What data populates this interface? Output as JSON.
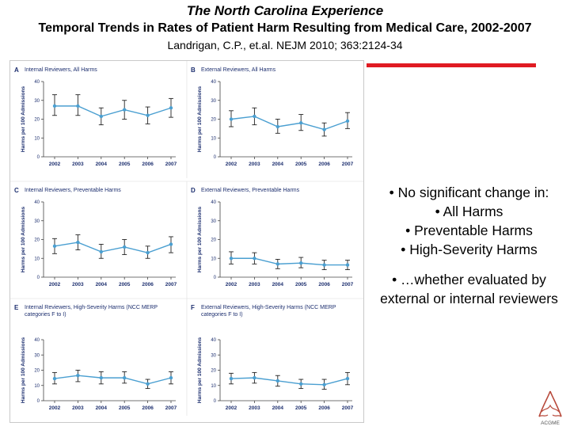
{
  "header": {
    "title_line1": "The North Carolina Experience",
    "title_line2": "Temporal Trends in Rates of Patient Harm Resulting from Medical Care, 2002-2007",
    "citation": "Landrigan, C.P., et.al. NEJM 2010; 363:2124-34"
  },
  "accent_color": "#e01b22",
  "series_color": "#4a9fd1",
  "bullets": {
    "first": "• No significant change in:",
    "subitems": [
      "• All Harms",
      "• Preventable Harms",
      "• High-Severity Harms"
    ],
    "second": "• …whether evaluated by external or internal reviewers"
  },
  "logo": {
    "icon": "acgme-logo-icon",
    "text": "ACGME"
  },
  "chart_data": [
    {
      "panel": "A",
      "title": "Internal Reviewers, All Harms",
      "type": "line",
      "ylabel": "Harms per 100 Admissions",
      "ylim": [
        0,
        40
      ],
      "yticks": [
        0,
        10,
        20,
        30,
        40
      ],
      "x": [
        "2002",
        "2003",
        "2004",
        "2005",
        "2006",
        "2007"
      ],
      "values": [
        27,
        27,
        21.5,
        25,
        22,
        26
      ],
      "ci_low": [
        22,
        22,
        17,
        20,
        17.5,
        21
      ],
      "ci_high": [
        33,
        33,
        26,
        30,
        26.5,
        31
      ]
    },
    {
      "panel": "B",
      "title": "External Reviewers, All Harms",
      "type": "line",
      "ylabel": "Harms per 100 Admissions",
      "ylim": [
        0,
        40
      ],
      "yticks": [
        0,
        10,
        20,
        30,
        40
      ],
      "x": [
        "2002",
        "2003",
        "2004",
        "2005",
        "2006",
        "2007"
      ],
      "values": [
        20,
        21.5,
        16,
        18,
        14.5,
        19
      ],
      "ci_low": [
        16,
        17,
        12.5,
        14,
        11,
        15
      ],
      "ci_high": [
        24.5,
        26,
        20,
        22.5,
        18,
        23.5
      ]
    },
    {
      "panel": "C",
      "title": "Internal Reviewers, Preventable Harms",
      "type": "line",
      "ylabel": "Harms per 100 Admissions",
      "ylim": [
        0,
        40
      ],
      "yticks": [
        0,
        10,
        20,
        30,
        40
      ],
      "x": [
        "2002",
        "2003",
        "2004",
        "2005",
        "2006",
        "2007"
      ],
      "values": [
        16.5,
        18.5,
        13.5,
        16,
        13,
        17.5
      ],
      "ci_low": [
        12.5,
        14.5,
        10,
        12,
        10,
        13
      ],
      "ci_high": [
        20.5,
        22.5,
        17.5,
        20,
        16.5,
        21.5
      ]
    },
    {
      "panel": "D",
      "title": "External Reviewers, Preventable Harms",
      "type": "line",
      "ylabel": "Harms per 100 Admissions",
      "ylim": [
        0,
        40
      ],
      "yticks": [
        0,
        10,
        20,
        30,
        40
      ],
      "x": [
        "2002",
        "2003",
        "2004",
        "2005",
        "2006",
        "2007"
      ],
      "values": [
        10,
        10,
        7,
        7.5,
        6.5,
        6.5
      ],
      "ci_low": [
        7,
        7,
        4.5,
        5,
        4,
        4
      ],
      "ci_high": [
        13.5,
        13,
        9.5,
        10.5,
        9,
        9
      ]
    },
    {
      "panel": "E",
      "title": "Internal Reviewers, High-Severity Harms (NCC MERP categories F to I)",
      "type": "line",
      "ylabel": "Harms per 100 Admissions",
      "ylim": [
        0,
        40
      ],
      "yticks": [
        0,
        10,
        20,
        30,
        40
      ],
      "x": [
        "2002",
        "2003",
        "2004",
        "2005",
        "2006",
        "2007"
      ],
      "values": [
        14.5,
        16.5,
        15,
        15,
        11,
        15
      ],
      "ci_low": [
        11,
        12.5,
        11,
        11.5,
        8,
        11
      ],
      "ci_high": [
        18.5,
        20,
        19,
        19,
        14,
        19
      ]
    },
    {
      "panel": "F",
      "title": "External Reviewers, High-Severity Harms (NCC MERP categories F to I)",
      "type": "line",
      "ylabel": "Harms per 100 Admissions",
      "ylim": [
        0,
        40
      ],
      "yticks": [
        0,
        10,
        20,
        30,
        40
      ],
      "x": [
        "2002",
        "2003",
        "2004",
        "2005",
        "2006",
        "2007"
      ],
      "values": [
        14.5,
        15,
        13,
        11,
        10.5,
        14.5
      ],
      "ci_low": [
        11,
        11.5,
        9.5,
        8,
        7.5,
        10.5
      ],
      "ci_high": [
        18,
        18.5,
        16.5,
        14,
        14,
        18.5
      ]
    }
  ]
}
